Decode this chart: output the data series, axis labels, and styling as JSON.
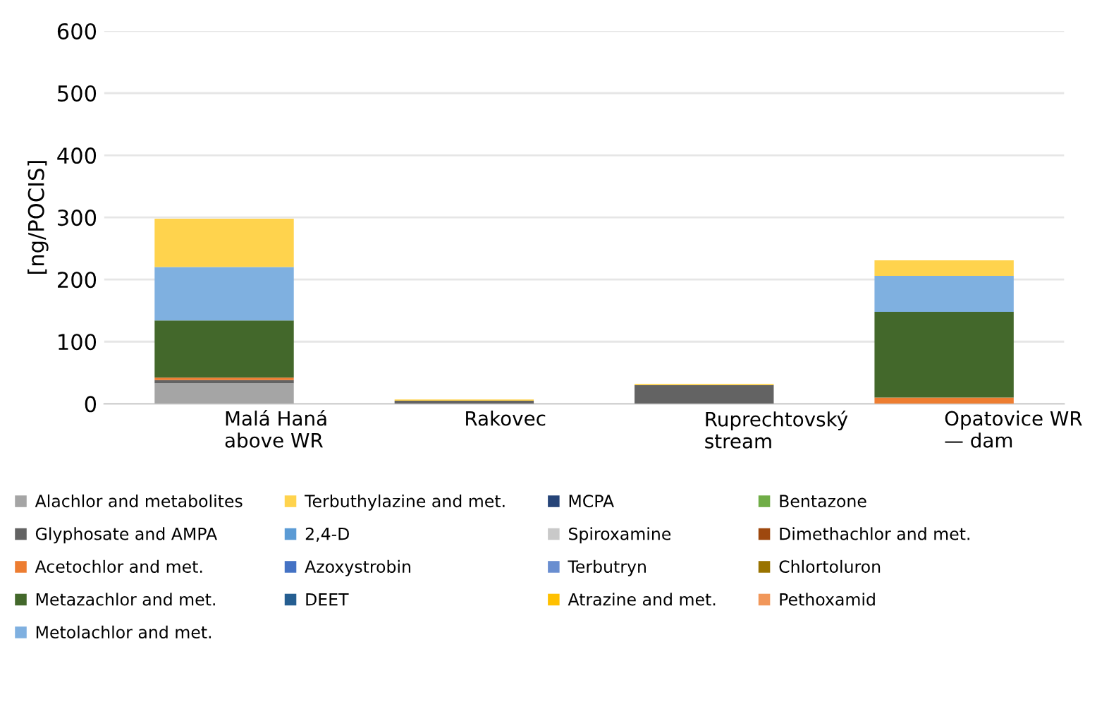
{
  "chart_data": {
    "type": "bar",
    "stacked": true,
    "ylabel": "[ng/POCIS]",
    "categories": [
      "Malá Haná\nabove WR",
      "Rakovec",
      "Ruprechtovský\nstream",
      "Opatovice WR\n— dam"
    ],
    "ylim": [
      0,
      600
    ],
    "yticks": [
      0,
      100,
      200,
      300,
      400,
      500,
      600
    ],
    "grid": "y",
    "legend": "bottom",
    "series": [
      {
        "name": "Alachlor and metabolites",
        "color": "#a5a5a5",
        "values": [
          33,
          0,
          0,
          0
        ]
      },
      {
        "name": "Glyphosate and AMPA",
        "color": "#636363",
        "values": [
          5,
          5,
          30,
          0
        ]
      },
      {
        "name": "Acetochlor and met.",
        "color": "#ed7d31",
        "values": [
          4,
          0,
          0,
          10
        ]
      },
      {
        "name": "Metazachlor and met.",
        "color": "#43682b",
        "values": [
          92,
          0,
          0,
          138
        ]
      },
      {
        "name": "Metolachlor and met.",
        "color": "#7fb0e0",
        "values": [
          86,
          0,
          0,
          58
        ]
      },
      {
        "name": "Terbuthylazine and met.",
        "color": "#ffd34d",
        "values": [
          78,
          2,
          2,
          25
        ]
      },
      {
        "name": "2,4-D",
        "color": "#5b9bd5",
        "values": [
          0,
          0,
          0,
          0
        ]
      },
      {
        "name": "Azoxystrobin",
        "color": "#4472c4",
        "values": [
          0,
          0,
          0,
          0
        ]
      },
      {
        "name": "DEET",
        "color": "#255e91",
        "values": [
          0,
          0,
          0,
          0
        ]
      },
      {
        "name": "MCPA",
        "color": "#264478",
        "values": [
          0,
          0,
          0,
          0
        ]
      },
      {
        "name": "Spiroxamine",
        "color": "#c9c9c9",
        "values": [
          0,
          0,
          0,
          0
        ]
      },
      {
        "name": "Terbutryn",
        "color": "#698ed0",
        "values": [
          0,
          0,
          0,
          0
        ]
      },
      {
        "name": "Atrazine and met.",
        "color": "#ffc000",
        "values": [
          0,
          0,
          0,
          0
        ]
      },
      {
        "name": "Bentazone",
        "color": "#70ad47",
        "values": [
          0,
          0,
          0,
          0
        ]
      },
      {
        "name": "Dimethachlor and met.",
        "color": "#9e480e",
        "values": [
          0,
          0,
          0,
          0
        ]
      },
      {
        "name": "Chlortoluron",
        "color": "#997300",
        "values": [
          0,
          0,
          0,
          0
        ]
      },
      {
        "name": "Pethoxamid",
        "color": "#f1975a",
        "values": [
          0,
          0,
          0,
          0
        ]
      }
    ]
  }
}
